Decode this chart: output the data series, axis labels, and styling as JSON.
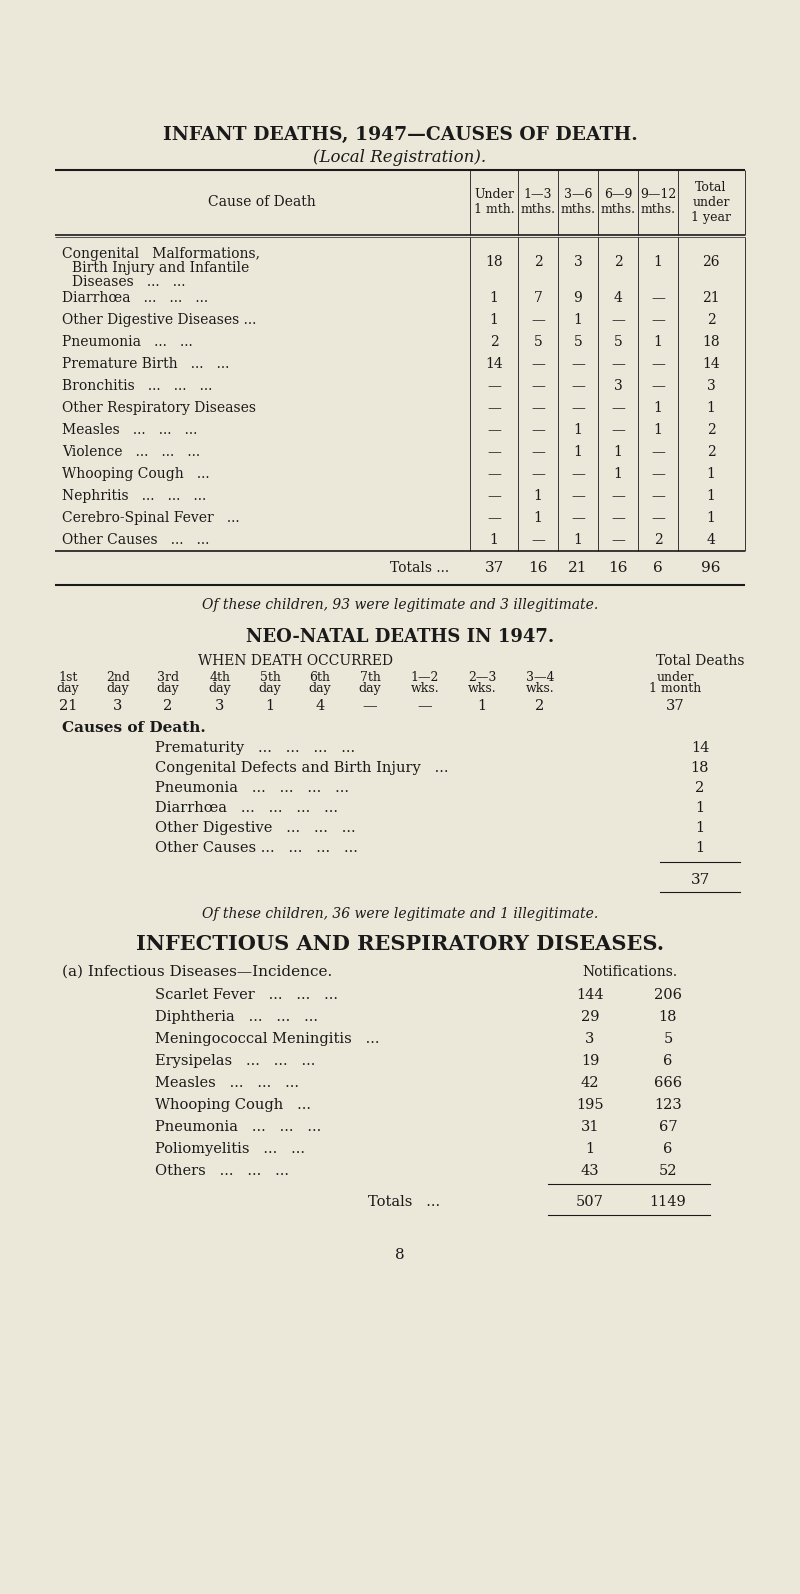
{
  "bg_color": "#ece8d9",
  "text_color": "#1a1a1a",
  "title1": "INFANT DEATHS, 1947—CAUSES OF DEATH.",
  "subtitle1": "(Local Registration).",
  "table1_rows": [
    [
      "Congenital   Malformations,\nBirth Injury and Infantile\nDiseases   ...   ...",
      "18",
      "2",
      "3",
      "2",
      "1",
      "26"
    ],
    [
      "Diarrhœa   ...   ...   ...",
      "1",
      "7",
      "9",
      "4",
      "—",
      "21"
    ],
    [
      "Other Digestive Diseases ...",
      "1",
      "—",
      "1",
      "—",
      "—",
      "2"
    ],
    [
      "Pneumonia   ...   ...",
      "2",
      "5",
      "5",
      "5",
      "1",
      "18"
    ],
    [
      "Premature Birth   ...   ...",
      "14",
      "—",
      "—",
      "—",
      "—",
      "14"
    ],
    [
      "Bronchitis   ...   ...   ...",
      "—",
      "—",
      "—",
      "3",
      "—",
      "3"
    ],
    [
      "Other Respiratory Diseases",
      "—",
      "—",
      "—",
      "—",
      "1",
      "1"
    ],
    [
      "Measles   ...   ...   ...",
      "—",
      "—",
      "1",
      "—",
      "1",
      "2"
    ],
    [
      "Violence   ...   ...   ...",
      "—",
      "—",
      "1",
      "1",
      "—",
      "2"
    ],
    [
      "Whooping Cough   ...",
      "—",
      "—",
      "—",
      "1",
      "—",
      "1"
    ],
    [
      "Nephritis   ...   ...   ...",
      "—",
      "1",
      "—",
      "—",
      "—",
      "1"
    ],
    [
      "Cerebro-Spinal Fever   ...",
      "—",
      "1",
      "—",
      "—",
      "—",
      "1"
    ],
    [
      "Other Causes   ...   ...",
      "1",
      "—",
      "1",
      "—",
      "2",
      "4"
    ]
  ],
  "table1_totals": [
    "Totals ...",
    "37",
    "16",
    "21",
    "16",
    "6",
    "96"
  ],
  "table1_note": "Of these children, 93 were legitimate and 3 illegitimate.",
  "title2": "NEO-NATAL DEATHS IN 1947.",
  "neonatal_col_headers": [
    "1st",
    "2nd",
    "3rd",
    "4th",
    "5th",
    "6th",
    "7th",
    "1—2",
    "2—3",
    "3—4",
    "under"
  ],
  "neonatal_col_headers2": [
    "day",
    "day",
    "day",
    "day",
    "day",
    "day",
    "day",
    "wks.",
    "wks.",
    "wks.",
    "1 month"
  ],
  "neonatal_values": [
    "21",
    "3",
    "2",
    "3",
    "1",
    "4",
    "—",
    "—",
    "1",
    "2",
    "37"
  ],
  "causes_of_death_rows": [
    [
      "Prematurity   ...   ...   ...   ...",
      "14"
    ],
    [
      "Congenital Defects and Birth Injury   ...",
      "18"
    ],
    [
      "Pneumonia   ...   ...   ...   ...",
      "2"
    ],
    [
      "Diarrhœa   ...   ...   ...   ...",
      "1"
    ],
    [
      "Other Digestive   ...   ...   ...",
      "1"
    ],
    [
      "Other Causes ...   ...   ...   ...",
      "1"
    ]
  ],
  "causes_total": "37",
  "neonatal_note": "Of these children, 36 were legitimate and 1 illegitimate.",
  "title3": "INFECTIOUS AND RESPIRATORY DISEASES.",
  "infectious_label": "(a) Infectious Diseases—Incidence.",
  "notifications_label": "Notifications.",
  "infectious_rows": [
    [
      "Scarlet Fever   ...   ...   ...",
      "144",
      "206"
    ],
    [
      "Diphtheria   ...   ...   ...",
      "29",
      "18"
    ],
    [
      "Meningococcal Meningitis   ...",
      "3",
      "5"
    ],
    [
      "Erysipelas   ...   ...   ...",
      "19",
      "6"
    ],
    [
      "Measles   ...   ...   ...",
      "42",
      "666"
    ],
    [
      "Whooping Cough   ...",
      "195",
      "123"
    ],
    [
      "Pneumonia   ...   ...   ...",
      "31",
      "67"
    ],
    [
      "Poliomyelitis   ...   ...",
      "1",
      "6"
    ],
    [
      "Others   ...   ...   ...",
      "43",
      "52"
    ]
  ],
  "infectious_totals": [
    "Totals   ...",
    "507",
    "1149"
  ],
  "page_number": "8"
}
